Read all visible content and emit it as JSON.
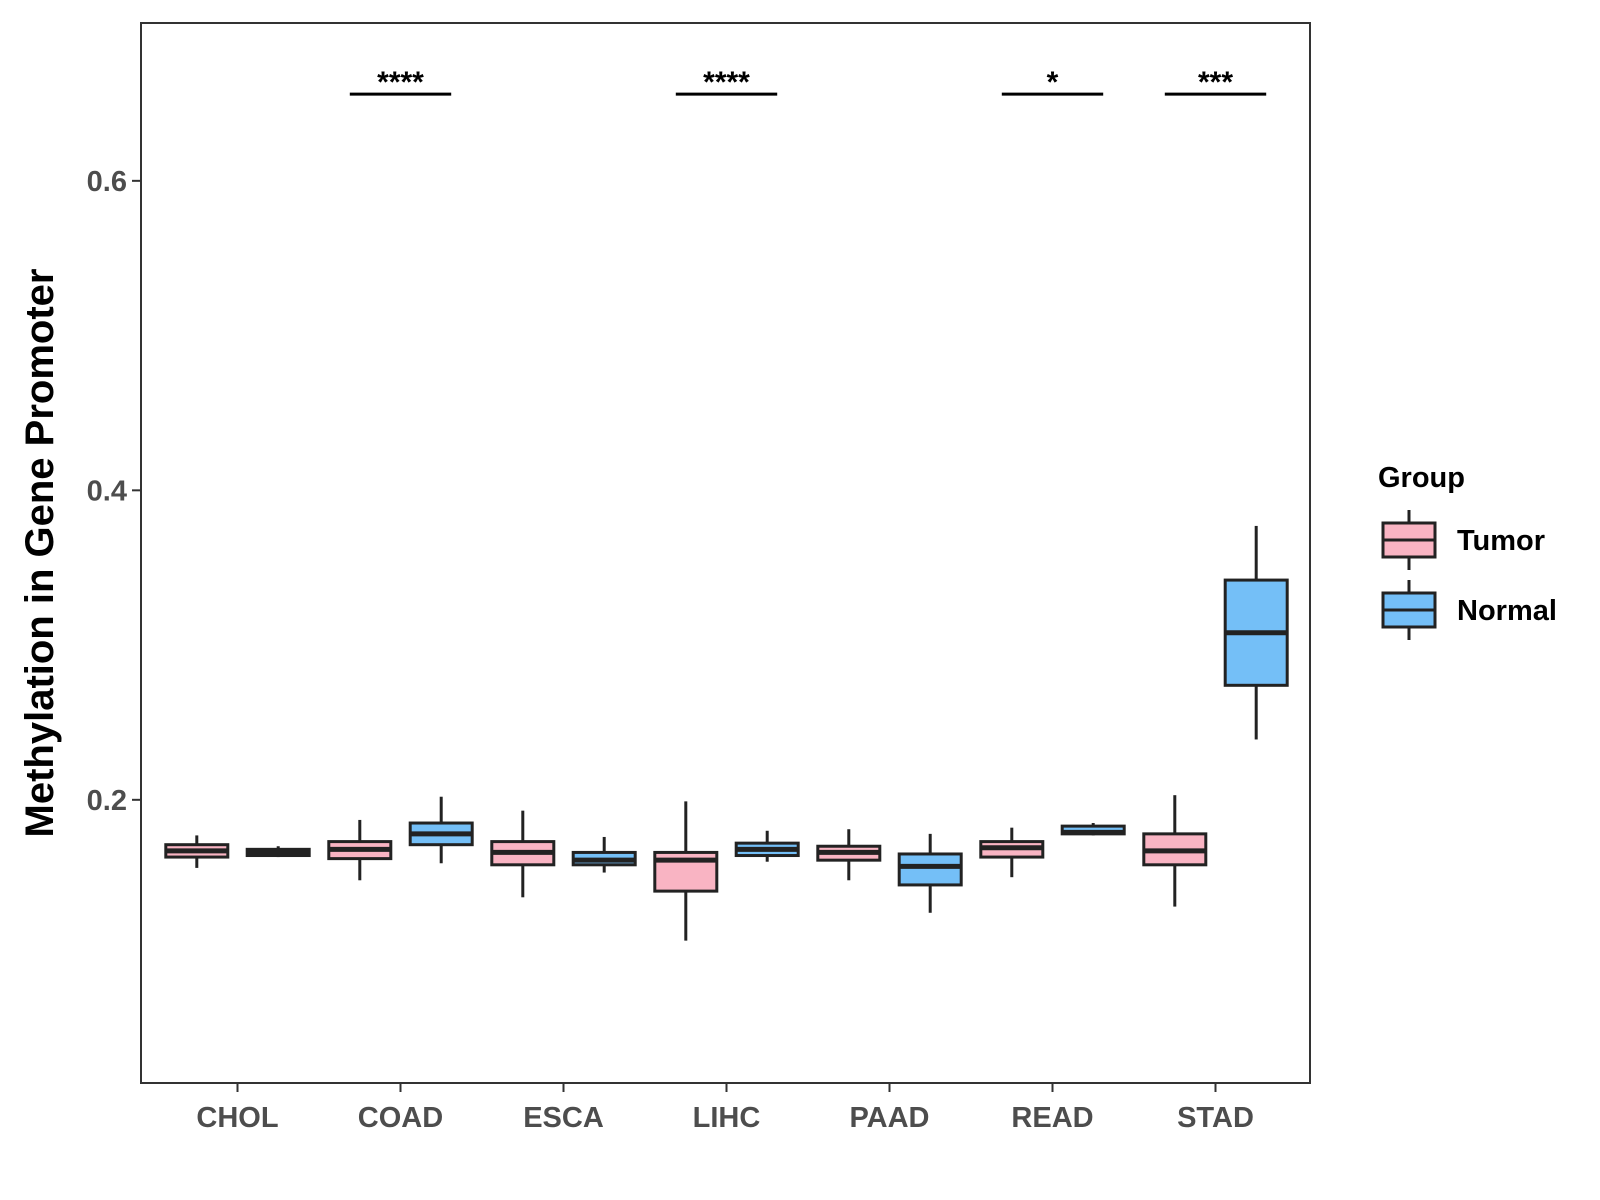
{
  "chart_data": {
    "type": "boxplot",
    "title": "",
    "xlabel": "",
    "ylabel": "Methylation in Gene Promoter",
    "ylim": [
      0.017,
      0.702
    ],
    "yticks": [
      0.2,
      0.4,
      0.6
    ],
    "ytick_labels": [
      "0.2",
      "0.4",
      "0.6"
    ],
    "categories": [
      "CHOL",
      "COAD",
      "ESCA",
      "LIHC",
      "PAAD",
      "READ",
      "STAD"
    ],
    "legend": {
      "title": "Group",
      "placement": "right",
      "entries": [
        {
          "name": "Tumor",
          "color": "#F9B4C3"
        },
        {
          "name": "Normal",
          "color": "#74BFF7"
        }
      ]
    },
    "series": [
      {
        "name": "Tumor",
        "color": "#F9B4C3",
        "boxes": [
          {
            "category": "CHOL",
            "min": 0.156,
            "q1": 0.163,
            "median": 0.167,
            "q3": 0.171,
            "max": 0.177
          },
          {
            "category": "COAD",
            "min": 0.148,
            "q1": 0.162,
            "median": 0.168,
            "q3": 0.173,
            "max": 0.187
          },
          {
            "category": "ESCA",
            "min": 0.137,
            "q1": 0.158,
            "median": 0.166,
            "q3": 0.173,
            "max": 0.193
          },
          {
            "category": "LIHC",
            "min": 0.109,
            "q1": 0.141,
            "median": 0.161,
            "q3": 0.166,
            "max": 0.199
          },
          {
            "category": "PAAD",
            "min": 0.148,
            "q1": 0.161,
            "median": 0.166,
            "q3": 0.17,
            "max": 0.181
          },
          {
            "category": "READ",
            "min": 0.15,
            "q1": 0.163,
            "median": 0.169,
            "q3": 0.173,
            "max": 0.182
          },
          {
            "category": "STAD",
            "min": 0.131,
            "q1": 0.158,
            "median": 0.167,
            "q3": 0.178,
            "max": 0.203
          }
        ]
      },
      {
        "name": "Normal",
        "color": "#74BFF7",
        "boxes": [
          {
            "category": "CHOL",
            "min": 0.163,
            "q1": 0.164,
            "median": 0.166,
            "q3": 0.168,
            "max": 0.17
          },
          {
            "category": "COAD",
            "min": 0.159,
            "q1": 0.171,
            "median": 0.178,
            "q3": 0.185,
            "max": 0.202
          },
          {
            "category": "ESCA",
            "min": 0.153,
            "q1": 0.158,
            "median": 0.161,
            "q3": 0.166,
            "max": 0.176
          },
          {
            "category": "LIHC",
            "min": 0.16,
            "q1": 0.164,
            "median": 0.168,
            "q3": 0.172,
            "max": 0.18
          },
          {
            "category": "PAAD",
            "min": 0.127,
            "q1": 0.145,
            "median": 0.157,
            "q3": 0.165,
            "max": 0.178
          },
          {
            "category": "READ",
            "min": 0.177,
            "q1": 0.178,
            "median": 0.179,
            "q3": 0.183,
            "max": 0.185
          },
          {
            "category": "STAD",
            "min": 0.239,
            "q1": 0.274,
            "median": 0.308,
            "q3": 0.342,
            "max": 0.377
          }
        ]
      }
    ],
    "significance": [
      {
        "category": "COAD",
        "label": "****",
        "y": 0.656
      },
      {
        "category": "LIHC",
        "label": "****",
        "y": 0.656
      },
      {
        "category": "READ",
        "label": "*",
        "y": 0.656
      },
      {
        "category": "STAD",
        "label": "***",
        "y": 0.656
      }
    ]
  }
}
